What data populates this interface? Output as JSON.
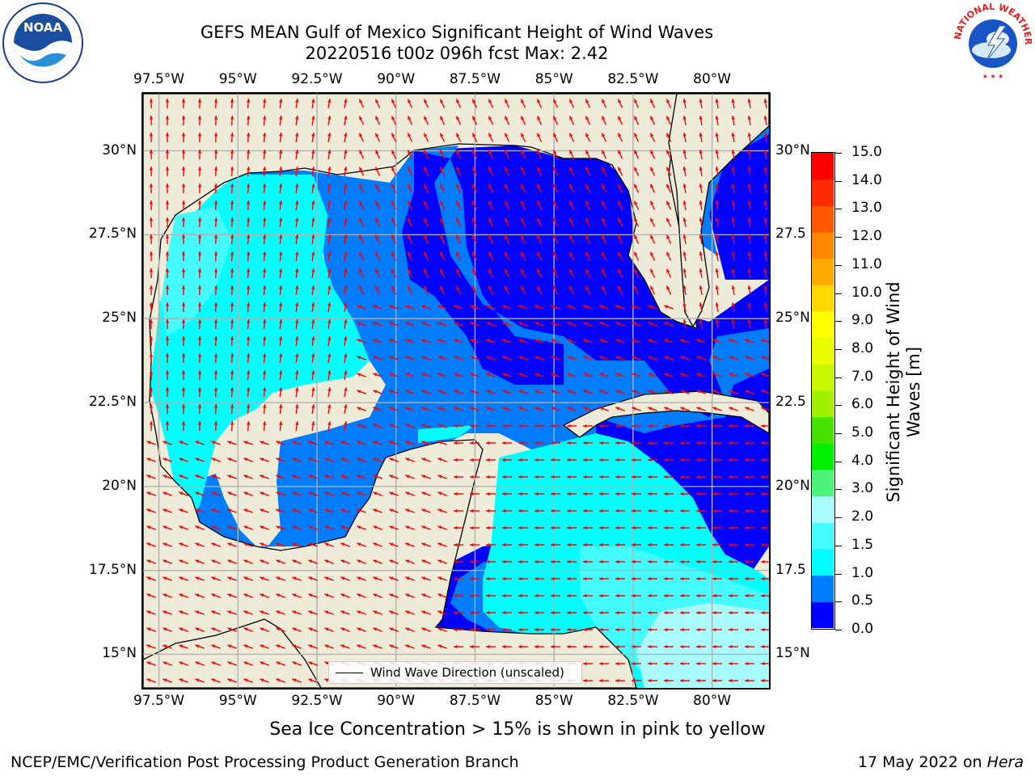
{
  "header": {
    "title_line1": "GEFS MEAN Gulf of Mexico Significant Height of Wind Waves",
    "title_line2": "20220516 t00z 096h fcst   Max: 2.42"
  },
  "logos": {
    "noaa_text": "NOAA",
    "noaa_ring": "NATIONAL OCEANIC AND ATMOSPHERIC ADMINISTRATION · U.S. DEPARTMENT OF COMMERCE",
    "nws_ring": "NATIONAL WEATHER SERVICE"
  },
  "map": {
    "lon_ticks": [
      "97.5°W",
      "95°W",
      "92.5°W",
      "90°W",
      "87.5°W",
      "85°W",
      "82.5°W",
      "80°W"
    ],
    "lat_ticks": [
      "30°N",
      "27.5°N",
      "25°N",
      "22.5°N",
      "20°N",
      "17.5°N",
      "15°N"
    ],
    "lat_ticks_right": [
      "30°N",
      "27.5",
      "25°N",
      "22.5",
      "20°N",
      "17.5",
      "15°N"
    ],
    "lon_values": [
      -97.5,
      -95,
      -92.5,
      -90,
      -87.5,
      -85,
      -82.5,
      -80
    ],
    "lat_values": [
      30,
      27.5,
      25,
      22.5,
      20,
      17.5,
      15
    ],
    "lon_range": [
      -98,
      -78.2
    ],
    "lat_range": [
      14,
      31.7
    ],
    "colors": {
      "land": "#eeecd9",
      "grid": "#b0b0b0",
      "arrow": "#ff0000",
      "coast": "#000000"
    }
  },
  "colorbar": {
    "labels": [
      "15.0",
      "14.0",
      "13.0",
      "12.0",
      "11.0",
      "10.0",
      "9.0",
      "8.0",
      "7.0",
      "6.0",
      "5.0",
      "4.0",
      "3.0",
      "2.0",
      "1.5",
      "1.0",
      "0.5",
      "0.0"
    ],
    "colors": [
      "#0000ff",
      "#007cff",
      "#00ffff",
      "#44fcff",
      "#a8fcff",
      "#4cf27a",
      "#00ee00",
      "#44e400",
      "#a0f000",
      "#c8f800",
      "#e8fc00",
      "#ffff00",
      "#ffd800",
      "#ffaa00",
      "#ff8800",
      "#ff5800",
      "#ff2800",
      "#ff0000"
    ],
    "title_line1": "Significant Height of Wind",
    "title_line2": "Waves [m]"
  },
  "legend": {
    "label": "Wind Wave Direction (unscaled)"
  },
  "bottom_note": "Sea Ice Concentration > 15% is shown in pink to yellow",
  "footer": {
    "left": "NCEP/EMC/Verification Post Processing Product Generation Branch",
    "date": "17 May 2022 on ",
    "machine": "Hera"
  }
}
